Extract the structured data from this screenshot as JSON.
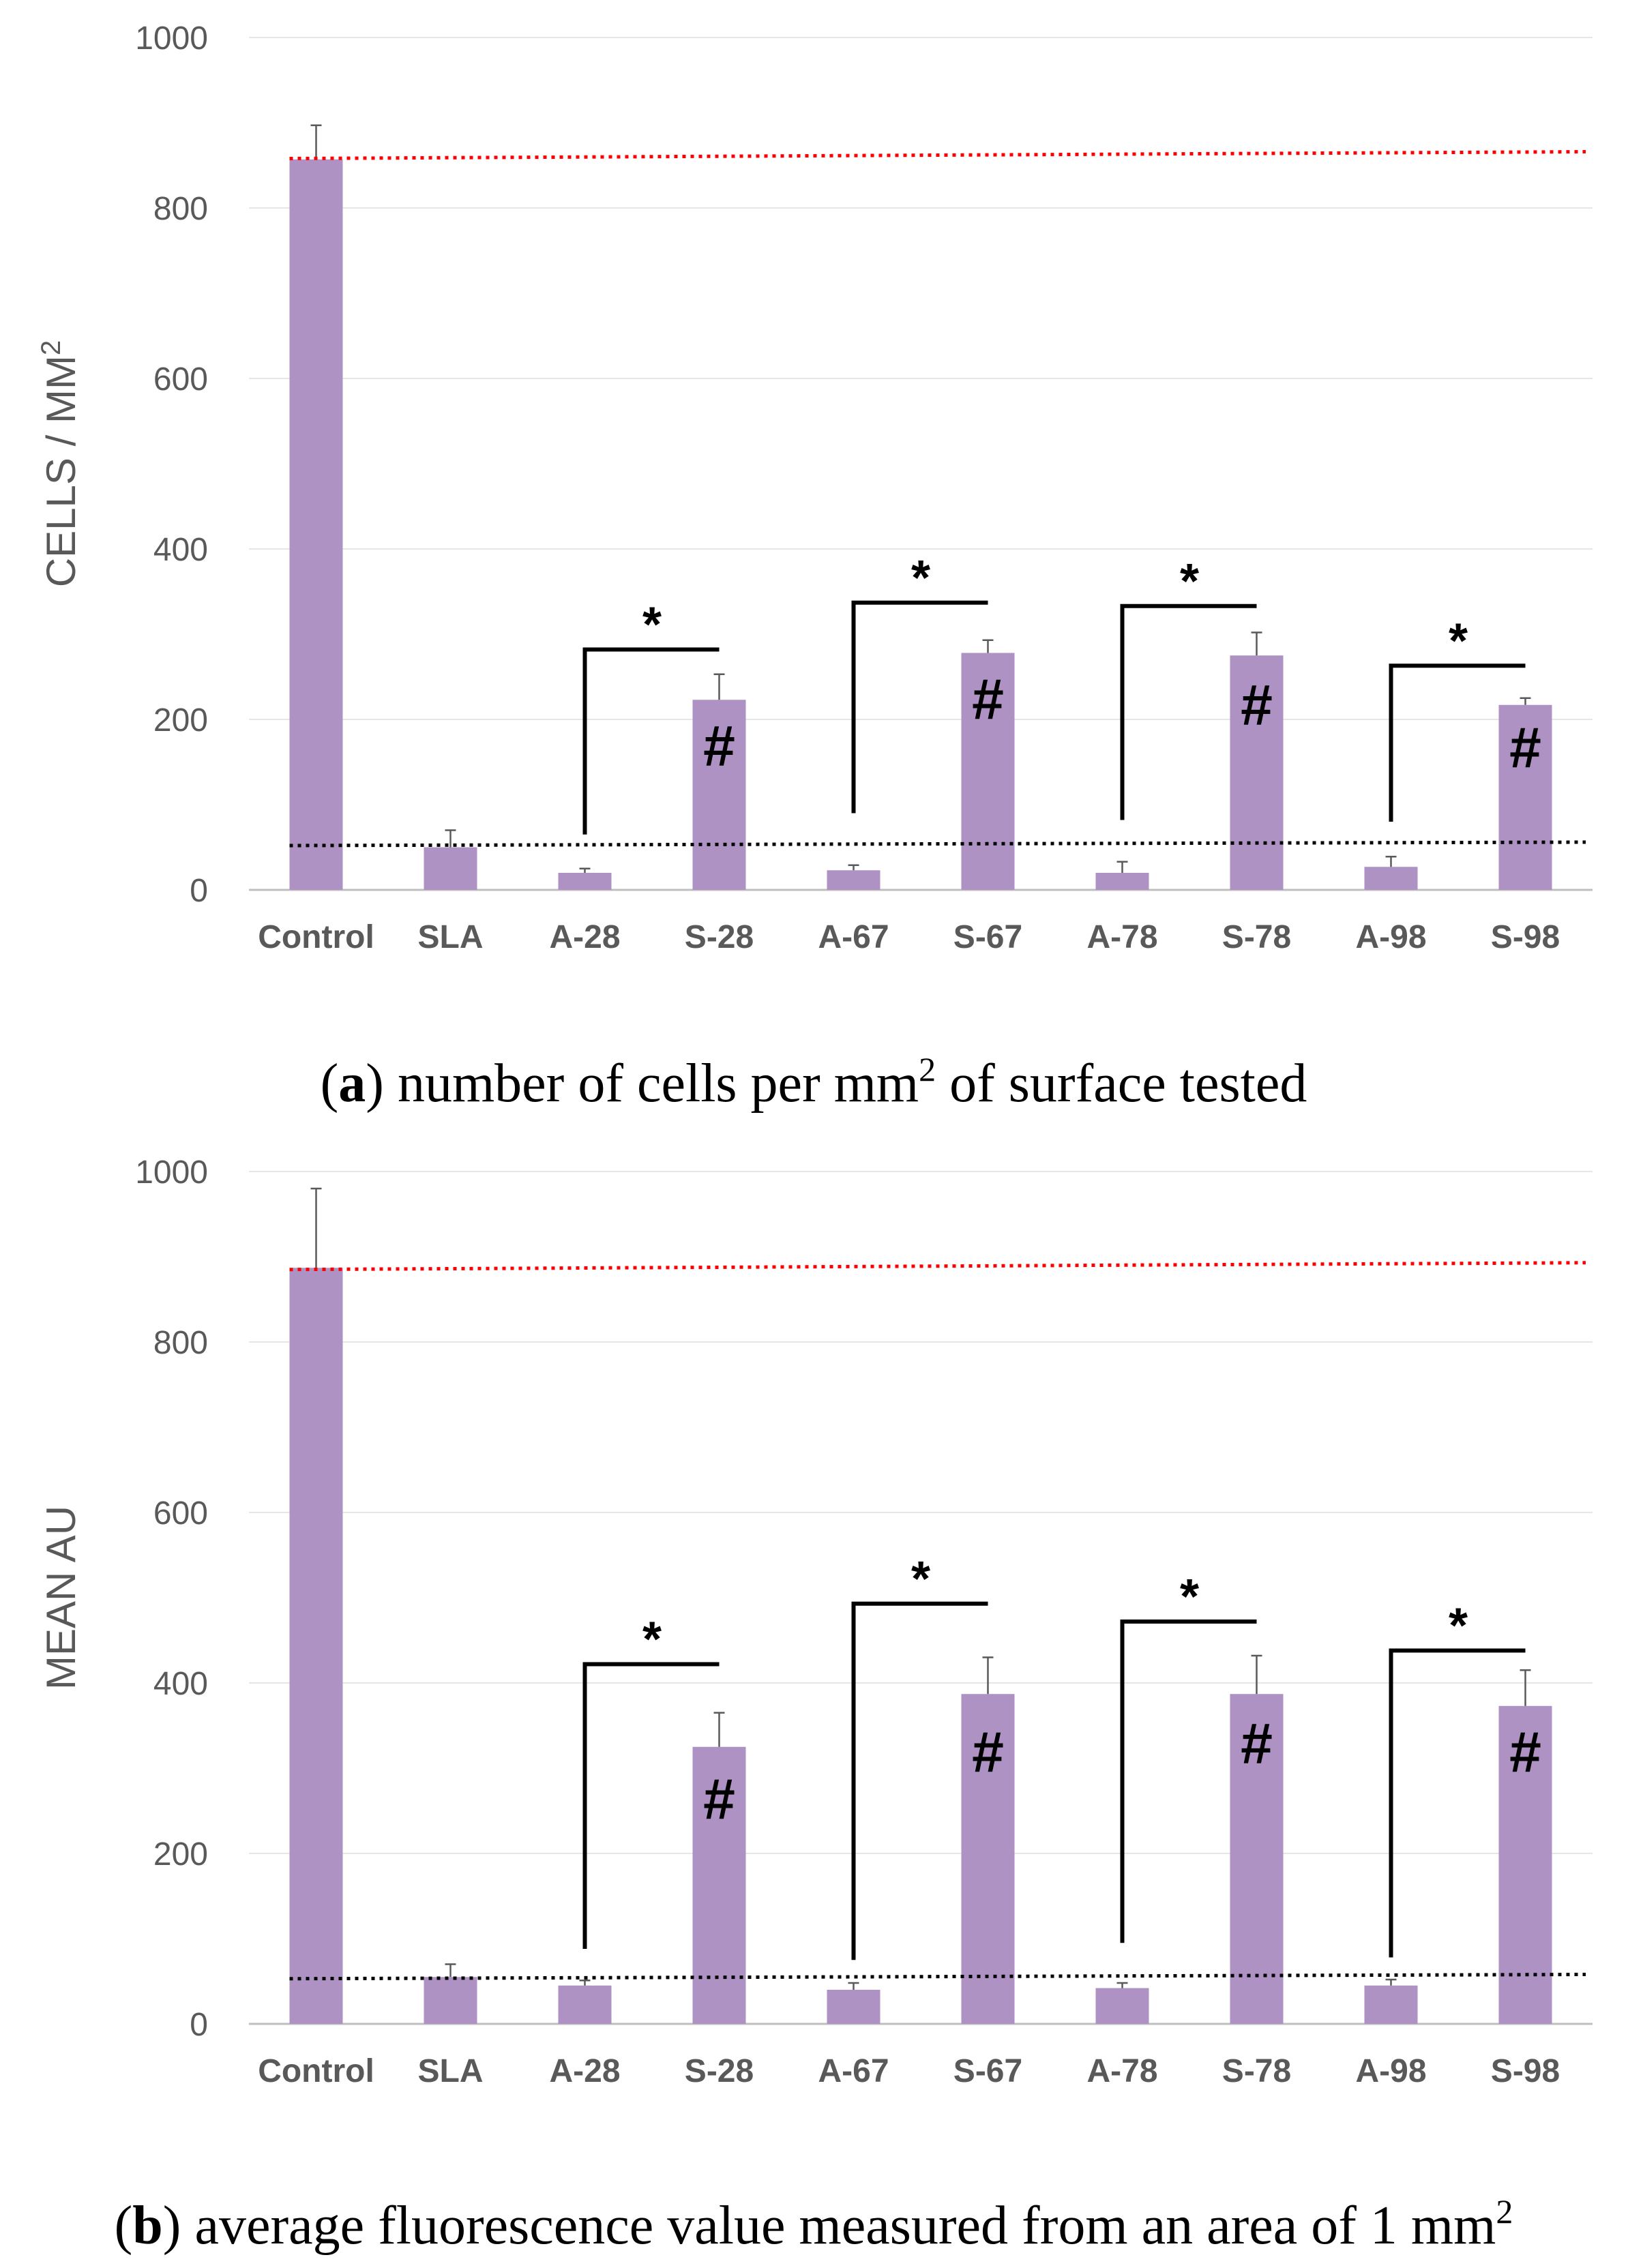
{
  "figure": {
    "panels": [
      {
        "caption_letter": "a",
        "caption_text": "number of cells per mm",
        "caption_sup": "2",
        "caption_tail": " of surface tested"
      },
      {
        "caption_letter": "b",
        "caption_text": "average fluorescence value measured from an area of 1 mm",
        "caption_sup": "2",
        "caption_tail": ""
      }
    ]
  },
  "chart_data": [
    {
      "type": "bar",
      "ylabel": "CELLS / MM",
      "ylabel_sup": "2",
      "xlabel": "",
      "ylim": [
        0,
        1000
      ],
      "yticks": [
        "0",
        "200",
        "400",
        "600",
        "800",
        "1000"
      ],
      "grid": true,
      "categories": [
        "Control",
        "SLA",
        "A-28",
        "S-28",
        "A-67",
        "S-67",
        "A-78",
        "S-78",
        "A-98",
        "S-98"
      ],
      "values": [
        857,
        50,
        20,
        223,
        23,
        278,
        20,
        275,
        27,
        217
      ],
      "errors": [
        40,
        20,
        5,
        30,
        6,
        15,
        13,
        27,
        12,
        8
      ],
      "bar_color": "#ae92c4",
      "reference_lines": [
        {
          "color": "#ff0000",
          "y_start": 858,
          "y_end": 866
        },
        {
          "color": "#000000",
          "y_start": 52,
          "y_end": 56
        }
      ],
      "significance": [
        {
          "from": "A-28",
          "to": "S-28",
          "label": "*",
          "bracket_y": 282,
          "left_drop_y": 65
        },
        {
          "from": "A-67",
          "to": "S-67",
          "label": "*",
          "bracket_y": 337,
          "left_drop_y": 90
        },
        {
          "from": "A-78",
          "to": "S-78",
          "label": "*",
          "bracket_y": 333,
          "left_drop_y": 82
        },
        {
          "from": "A-98",
          "to": "S-98",
          "label": "*",
          "bracket_y": 263,
          "left_drop_y": 80
        }
      ],
      "hash_marks": [
        {
          "category": "S-28",
          "label": "#",
          "y": 170
        },
        {
          "category": "S-67",
          "label": "#",
          "y": 225
        },
        {
          "category": "S-78",
          "label": "#",
          "y": 218
        },
        {
          "category": "S-98",
          "label": "#",
          "y": 168
        }
      ]
    },
    {
      "type": "bar",
      "ylabel": "MEAN AU",
      "ylabel_sup": "",
      "xlabel": "",
      "ylim": [
        0,
        1000
      ],
      "yticks": [
        "0",
        "200",
        "400",
        "600",
        "800",
        "1000"
      ],
      "grid": true,
      "categories": [
        "Control",
        "SLA",
        "A-28",
        "S-28",
        "A-67",
        "S-67",
        "A-78",
        "S-78",
        "A-98",
        "S-98"
      ],
      "values": [
        887,
        55,
        45,
        325,
        40,
        387,
        42,
        387,
        45,
        373
      ],
      "errors": [
        93,
        15,
        6,
        40,
        8,
        43,
        6,
        45,
        7,
        42
      ],
      "bar_color": "#ae92c4",
      "reference_lines": [
        {
          "color": "#ff0000",
          "y_start": 885,
          "y_end": 893
        },
        {
          "color": "#000000",
          "y_start": 53,
          "y_end": 58
        }
      ],
      "significance": [
        {
          "from": "A-28",
          "to": "S-28",
          "label": "*",
          "bracket_y": 422,
          "left_drop_y": 88
        },
        {
          "from": "A-67",
          "to": "S-67",
          "label": "*",
          "bracket_y": 493,
          "left_drop_y": 75
        },
        {
          "from": "A-78",
          "to": "S-78",
          "label": "*",
          "bracket_y": 472,
          "left_drop_y": 95
        },
        {
          "from": "A-98",
          "to": "S-98",
          "label": "*",
          "bracket_y": 438,
          "left_drop_y": 78
        }
      ],
      "hash_marks": [
        {
          "category": "S-28",
          "label": "#",
          "y": 265
        },
        {
          "category": "S-67",
          "label": "#",
          "y": 320
        },
        {
          "category": "S-78",
          "label": "#",
          "y": 330
        },
        {
          "category": "S-98",
          "label": "#",
          "y": 320
        }
      ]
    }
  ]
}
